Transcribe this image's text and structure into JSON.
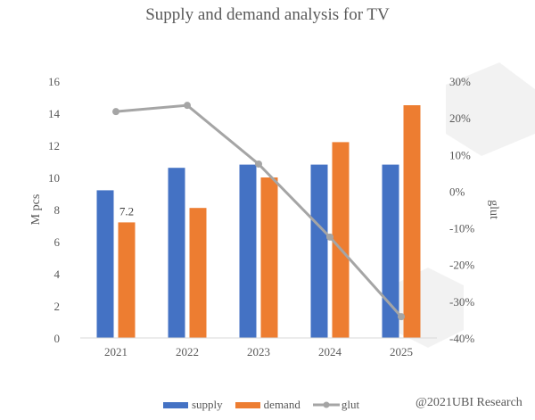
{
  "chart_data": {
    "type": "bar",
    "title": "Supply and demand analysis for TV",
    "categories": [
      "2021",
      "2022",
      "2023",
      "2024",
      "2025"
    ],
    "series": [
      {
        "name": "supply",
        "kind": "bar",
        "axis": "left",
        "color": "#4472C4",
        "values": [
          9.2,
          10.6,
          10.8,
          10.8,
          10.8
        ]
      },
      {
        "name": "demand",
        "kind": "bar",
        "axis": "left",
        "color": "#ED7D31",
        "values": [
          7.2,
          8.1,
          10.0,
          12.2,
          14.5
        ]
      },
      {
        "name": "glut",
        "kind": "line",
        "axis": "right",
        "color": "#A5A5A5",
        "values": [
          21.7,
          23.4,
          7.4,
          -12.5,
          -34.2
        ]
      }
    ],
    "data_labels": [
      {
        "series": "demand",
        "category": "2021",
        "text": "7.2"
      }
    ],
    "ylabel": "M pcs",
    "y2label": "glut",
    "ylim": [
      0,
      16
    ],
    "y2lim": [
      -40,
      30
    ],
    "yticks": [
      "0",
      "2",
      "4",
      "6",
      "8",
      "10",
      "12",
      "14",
      "16"
    ],
    "y2ticks": [
      "-40%",
      "-30%",
      "-20%",
      "-10%",
      "0%",
      "10%",
      "20%",
      "30%"
    ],
    "grid": false,
    "legend": "bottom",
    "legend_entries": [
      "supply",
      "demand",
      "glut"
    ]
  },
  "credit": "@2021UBI Research"
}
